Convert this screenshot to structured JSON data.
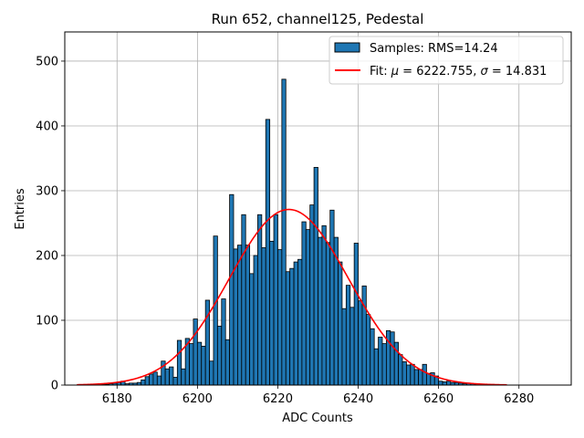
{
  "chart_data": {
    "type": "bar",
    "title": "Run 652, channel125, Pedestal",
    "xlabel": "ADC Counts",
    "ylabel": "Entries",
    "xlim": [
      6167,
      6293
    ],
    "ylim": [
      0,
      545
    ],
    "xticks": [
      6180,
      6200,
      6220,
      6240,
      6260,
      6280
    ],
    "yticks": [
      0,
      100,
      200,
      300,
      400,
      500
    ],
    "grid": true,
    "legend_position": "top-right",
    "bin_width": 1,
    "bar_color": "#1f77b4",
    "fit_color": "#ff0000",
    "legend": {
      "samples_label": "Samples: RMS=14.24",
      "fit_label_prefix": "Fit: ",
      "fit_mu_symbol": "μ",
      "fit_mu_value": " = 6222.755, ",
      "fit_sigma_symbol": "σ",
      "fit_sigma_value": " = 14.831"
    },
    "fit": {
      "mu": 6222.755,
      "sigma": 14.831,
      "amplitude": 271,
      "x_range": [
        6170,
        6277
      ]
    },
    "histogram": {
      "bin_left_edges": [
        6176,
        6177,
        6178,
        6179,
        6180,
        6181,
        6182,
        6183,
        6184,
        6185,
        6186,
        6187,
        6188,
        6189,
        6190,
        6191,
        6192,
        6193,
        6194,
        6195,
        6196,
        6197,
        6198,
        6199,
        6200,
        6201,
        6202,
        6203,
        6204,
        6205,
        6206,
        6207,
        6208,
        6209,
        6210,
        6211,
        6212,
        6213,
        6214,
        6215,
        6216,
        6217,
        6218,
        6219,
        6220,
        6221,
        6222,
        6223,
        6224,
        6225,
        6226,
        6227,
        6228,
        6229,
        6230,
        6231,
        6232,
        6233,
        6234,
        6235,
        6236,
        6237,
        6238,
        6239,
        6240,
        6241,
        6242,
        6243,
        6244,
        6245,
        6246,
        6247,
        6248,
        6249,
        6250,
        6251,
        6252,
        6253,
        6254,
        6255,
        6256,
        6257,
        6258,
        6259,
        6260,
        6261,
        6262,
        6263,
        6264,
        6265,
        6266,
        6267,
        6268,
        6269,
        6270,
        6271,
        6272,
        6273
      ],
      "values": [
        1,
        1,
        2,
        3,
        4,
        6,
        2,
        3,
        3,
        4,
        8,
        13,
        17,
        20,
        14,
        37,
        25,
        28,
        12,
        69,
        25,
        72,
        64,
        102,
        66,
        60,
        131,
        37,
        230,
        91,
        133,
        70,
        294,
        210,
        216,
        263,
        216,
        172,
        200,
        263,
        212,
        410,
        222,
        263,
        209,
        472,
        175,
        180,
        190,
        194,
        252,
        240,
        278,
        336,
        228,
        246,
        220,
        270,
        228,
        190,
        118,
        154,
        120,
        219,
        130,
        153,
        109,
        87,
        56,
        74,
        64,
        84,
        82,
        66,
        47,
        36,
        31,
        32,
        24,
        24,
        32,
        18,
        19,
        14,
        6,
        5,
        6,
        4,
        4,
        3,
        2,
        3,
        2,
        1,
        1,
        1,
        1,
        1
      ]
    }
  }
}
